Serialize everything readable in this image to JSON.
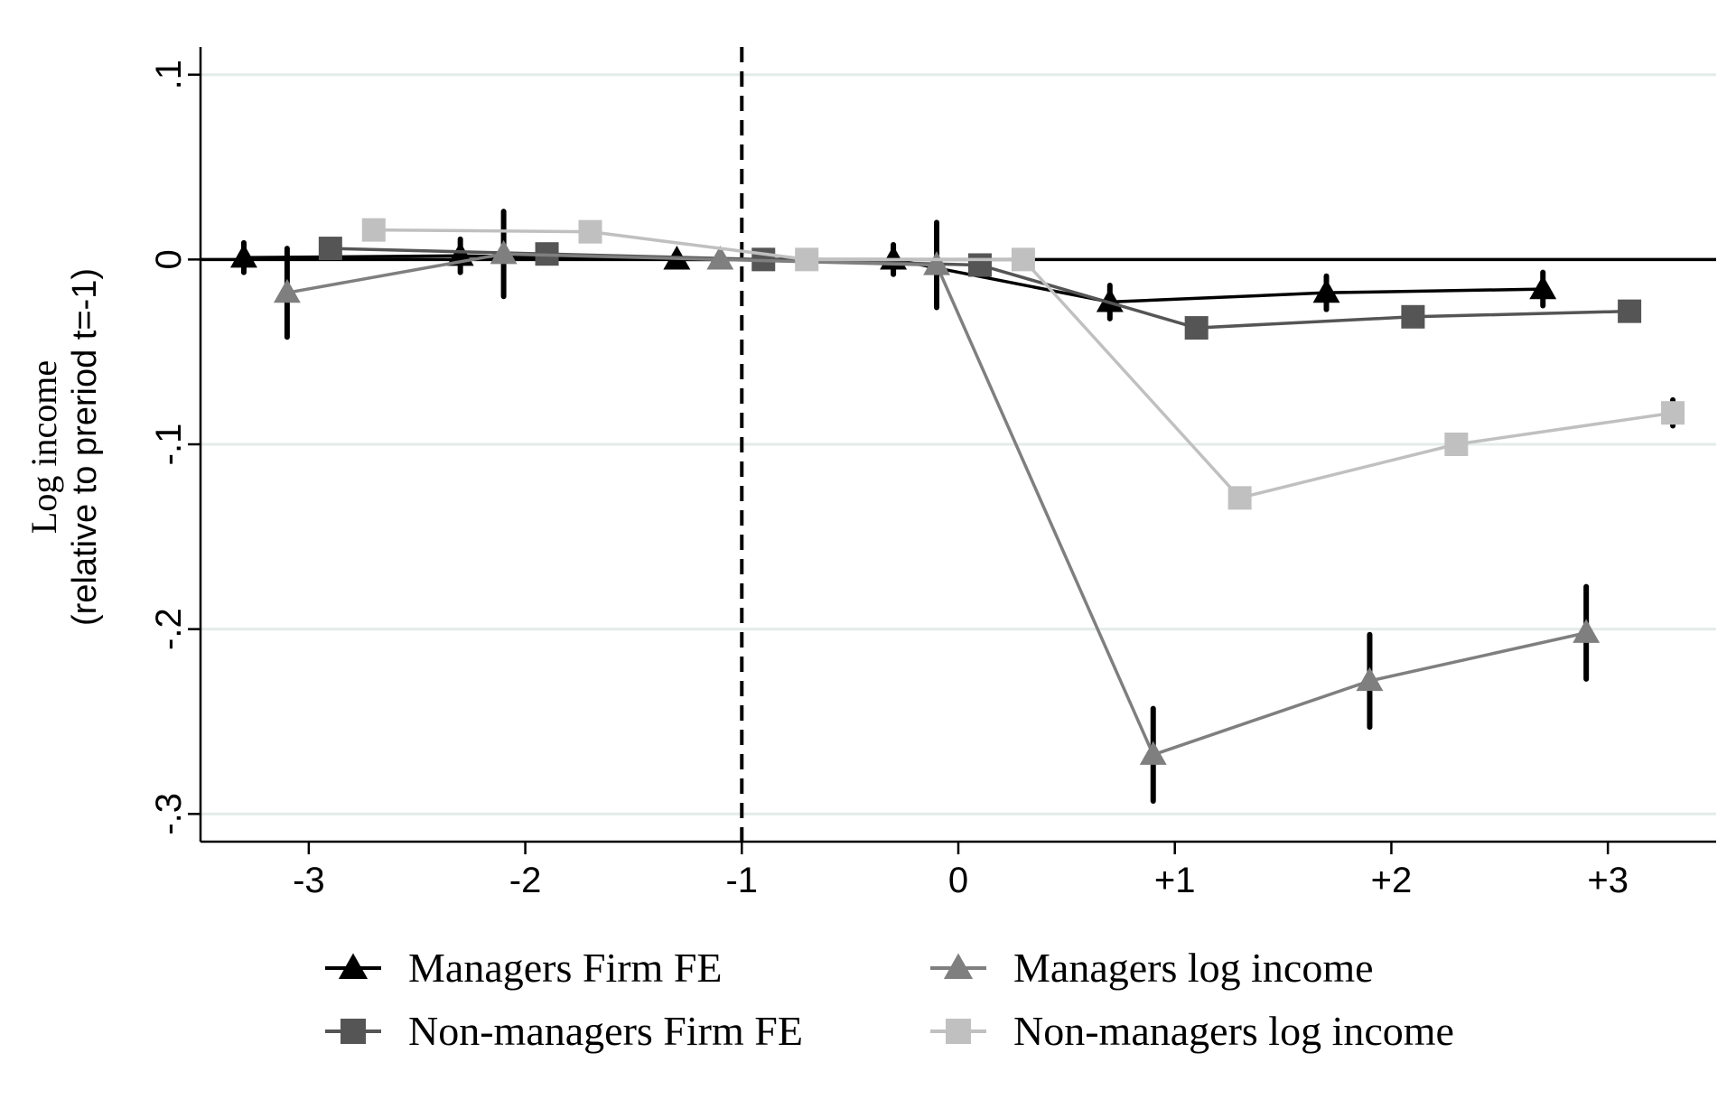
{
  "chart_data": {
    "type": "line",
    "title": "",
    "ylabel": "Log income",
    "ylabel_sub": "(relative to preriod t=-1)",
    "xlabel": "",
    "x_tick_labels": [
      "-3",
      "-2",
      "-1",
      "0",
      "+1",
      "+2",
      "+3"
    ],
    "x_tick_values": [
      -3,
      -2,
      -1,
      0,
      1,
      2,
      3
    ],
    "y_tick_labels": [
      ".1",
      "0",
      "-.1",
      "-.2",
      "-.3"
    ],
    "y_tick_values": [
      0.1,
      0,
      -0.1,
      -0.2,
      -0.3
    ],
    "ylim": [
      -0.315,
      0.115
    ],
    "xlim": [
      -3.5,
      3.5
    ],
    "grid": true,
    "event_line_x": -1,
    "zero_line_y": 0,
    "legend_position": "bottom",
    "series": [
      {
        "name": "Managers Firm FE",
        "marker": "triangle",
        "color": "#000000",
        "x": [
          -3.3,
          -2.3,
          -1.3,
          -0.3,
          0.7,
          1.7,
          2.7
        ],
        "y": [
          0.001,
          0.002,
          0.0,
          0.0,
          -0.023,
          -0.018,
          -0.016
        ],
        "ci_low": [
          -0.007,
          -0.007,
          -0.003,
          -0.008,
          -0.032,
          -0.027,
          -0.025
        ],
        "ci_high": [
          0.009,
          0.011,
          0.003,
          0.008,
          -0.014,
          -0.009,
          -0.007
        ]
      },
      {
        "name": "Non-managers Firm FE",
        "marker": "square",
        "color": "#555555",
        "x": [
          -2.9,
          -1.9,
          -0.9,
          0.1,
          1.1,
          2.1,
          3.1
        ],
        "y": [
          0.006,
          0.003,
          0.0,
          -0.003,
          -0.037,
          -0.031,
          -0.028
        ],
        "ci_low": [
          0.004,
          0.001,
          -0.001,
          -0.005,
          -0.039,
          -0.033,
          -0.03
        ],
        "ci_high": [
          0.008,
          0.005,
          0.001,
          -0.001,
          -0.035,
          -0.029,
          -0.026
        ]
      },
      {
        "name": "Managers log income",
        "marker": "triangle",
        "color": "#7f7f7f",
        "x": [
          -3.1,
          -2.1,
          -1.1,
          -0.1,
          0.9,
          1.9,
          2.9
        ],
        "y": [
          -0.018,
          0.003,
          0.0,
          -0.003,
          -0.268,
          -0.228,
          -0.202
        ],
        "ci_low": [
          -0.042,
          -0.02,
          -0.002,
          -0.026,
          -0.293,
          -0.253,
          -0.227
        ],
        "ci_high": [
          0.006,
          0.026,
          0.002,
          0.02,
          -0.243,
          -0.203,
          -0.177
        ]
      },
      {
        "name": "Non-managers log income",
        "marker": "square",
        "color": "#c0c0c0",
        "x": [
          -2.7,
          -1.7,
          -0.7,
          0.3,
          1.3,
          2.3,
          3.3
        ],
        "y": [
          0.016,
          0.015,
          0.0,
          0.0,
          -0.129,
          -0.1,
          -0.083
        ],
        "ci_low": [
          0.014,
          0.013,
          -0.002,
          -0.002,
          -0.131,
          -0.102,
          -0.09
        ],
        "ci_high": [
          0.018,
          0.017,
          0.002,
          0.002,
          -0.127,
          -0.098,
          -0.076
        ]
      }
    ]
  }
}
